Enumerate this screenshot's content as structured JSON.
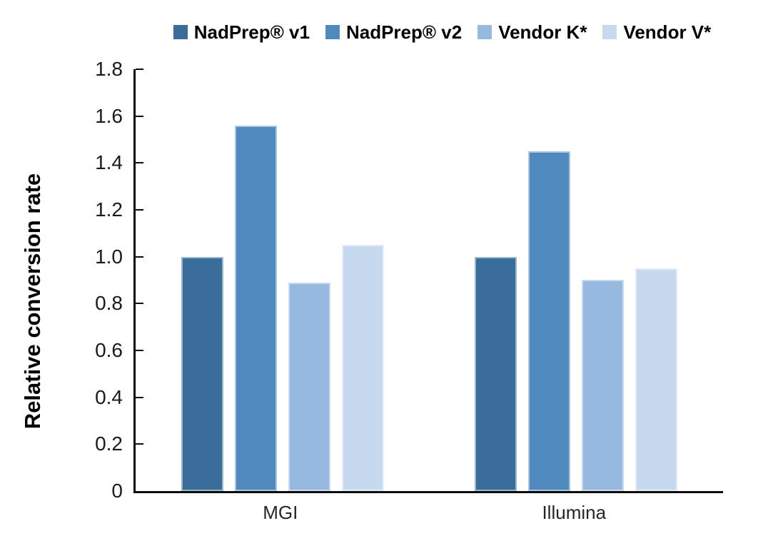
{
  "chart_data": {
    "type": "bar",
    "title": "",
    "xlabel": "",
    "ylabel": "Relative conversion rate",
    "ylim": [
      0,
      1.8
    ],
    "ytick_step": 0.2,
    "ytick_labels": [
      "0",
      "0.2",
      "0.4",
      "0.6",
      "0.8",
      "1.0",
      "1.2",
      "1.4",
      "1.6",
      "1.8"
    ],
    "grid": "off",
    "legend_position": "top",
    "categories": [
      "MGI",
      "Illumina"
    ],
    "series": [
      {
        "name": "NadPrep® v1",
        "color": "#3A6D99",
        "border_color": "#9CB6CC",
        "values": [
          1.0,
          1.0
        ]
      },
      {
        "name": "NadPrep® v2",
        "color": "#5089BE",
        "border_color": "#A9C6E2",
        "values": [
          1.56,
          1.45
        ]
      },
      {
        "name": "Vendor K*",
        "color": "#97B8DF",
        "border_color": "#CBDBEF",
        "values": [
          0.89,
          0.9
        ]
      },
      {
        "name": "Vendor V*",
        "color": "#C7D9EF",
        "border_color": "#E3ECF7",
        "values": [
          1.05,
          0.95
        ]
      }
    ],
    "axis_color": "#0d0d0d",
    "background_color": "#ffffff"
  }
}
